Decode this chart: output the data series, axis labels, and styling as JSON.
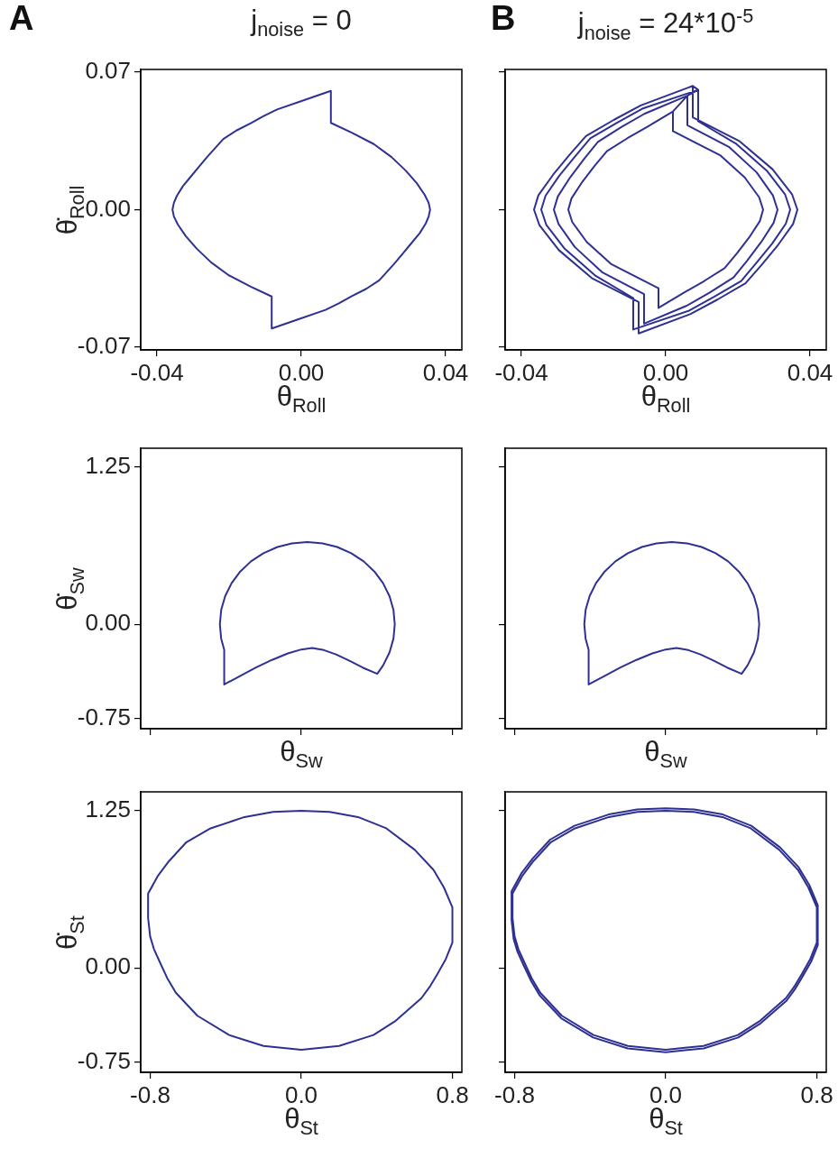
{
  "chart_data": [
    {
      "type": "line",
      "title": "j$_{noise}$ = 0",
      "annotations": [
        "A"
      ],
      "xlabel": "θ$_{Roll}$",
      "ylabel": "θ̇$_{Roll}$",
      "xlim": [
        -0.0445,
        0.0445
      ],
      "ylim": [
        -0.0714,
        0.0714
      ],
      "xticks": [
        -0.04,
        {
          "value": 0,
          "label": "0.00"
        },
        0.04
      ],
      "yticks": [
        -0.07,
        {
          "value": 0,
          "label": "0.00"
        },
        0.07
      ],
      "series": [
        {
          "color": "#2e3192",
          "x": [
            0.0082,
            0.0082,
            0.014,
            0.0201,
            0.025,
            0.029,
            0.032,
            0.0342,
            0.0353,
            0.0357,
            0.0353,
            0.0345,
            0.0328,
            0.0305,
            0.0283,
            0.026,
            0.0238,
            0.0216,
            0.018,
            0.014,
            0.0104,
            0.0067,
            -0.0008,
            -0.0082,
            -0.0082,
            -0.014,
            -0.0201,
            -0.025,
            -0.029,
            -0.032,
            -0.0342,
            -0.0353,
            -0.0357,
            -0.0353,
            -0.0345,
            -0.0328,
            -0.0305,
            -0.0283,
            -0.026,
            -0.0238,
            -0.0216,
            -0.018,
            -0.014,
            -0.0104,
            -0.0067,
            0.0008,
            0.0082,
            0.0082
          ],
          "values": [
            0.0605,
            0.0442,
            0.0392,
            0.0334,
            0.0268,
            0.0198,
            0.0135,
            0.0076,
            0.0035,
            0,
            -0.0035,
            -0.007,
            -0.012,
            -0.0171,
            -0.022,
            -0.027,
            -0.0315,
            -0.036,
            -0.0403,
            -0.044,
            -0.0477,
            -0.051,
            -0.0558,
            -0.0605,
            -0.0442,
            -0.0392,
            -0.0334,
            -0.0268,
            -0.0198,
            -0.0135,
            -0.0076,
            -0.0035,
            0,
            0.0035,
            0.007,
            0.012,
            0.0171,
            0.022,
            0.027,
            0.0315,
            0.036,
            0.0403,
            0.044,
            0.0477,
            0.051,
            0.0558,
            0.0605,
            0.052
          ]
        }
      ]
    },
    {
      "type": "line",
      "title": "j$_{noise}$ = 24*10$^{-5}$",
      "annotations": [
        "B"
      ],
      "xlabel": "θ$_{Roll}$",
      "xlim": [
        -0.0445,
        0.0445
      ],
      "ylim": [
        -0.0714,
        0.0714
      ],
      "xticks": [
        -0.04,
        {
          "value": 0,
          "label": "0.00"
        },
        0.04
      ],
      "yticks": [
        {
          "value": -0.07,
          "label": null
        },
        {
          "value": 0,
          "label": null
        },
        {
          "value": 0.07,
          "label": null
        }
      ],
      "tick_labels": "x",
      "series": [
        {
          "color": "#2e3192",
          "x": [
            0.002,
            0.002,
            0.0152,
            0.0219,
            0.0259,
            0.027,
            0.0261,
            0.0231,
            0.0197,
            0.0163,
            0.0106,
            0.0051,
            -0.002,
            -0.002,
            -0.0152,
            -0.0219,
            -0.0259,
            -0.027,
            -0.0261,
            -0.0231,
            -0.0197,
            -0.0163,
            -0.0106,
            -0.0051,
            0.002,
            0.006,
            0.006,
            0.0175,
            0.0252,
            0.0297,
            0.031,
            0.0299,
            0.0265,
            0.0226,
            0.0188,
            0.0122,
            0.0058,
            -0.006,
            -0.006,
            -0.0175,
            -0.0252,
            -0.0297,
            -0.031,
            -0.0299,
            -0.0265,
            -0.0226,
            -0.0188,
            -0.0122,
            -0.0058,
            0.006,
            0.009,
            0.009,
            0.0194,
            0.028,
            0.0331,
            0.0345,
            0.0333,
            0.0295,
            0.0251,
            0.0209,
            0.0135,
            0.0065,
            -0.009,
            -0.009,
            -0.0194,
            -0.028,
            -0.0331,
            -0.0345,
            -0.0333,
            -0.0295,
            -0.0251,
            -0.0209,
            -0.0135,
            -0.0065,
            0.009,
            0.0075,
            0.0075,
            0.0205,
            0.0296,
            0.035,
            0.0365,
            0.0353,
            0.0312,
            0.0266,
            0.0221,
            0.0143,
            0.0069,
            -0.0075,
            -0.0075,
            -0.0205,
            -0.0296,
            -0.035,
            -0.0365,
            -0.0353,
            -0.0312,
            -0.0266,
            -0.0221,
            -0.0143,
            -0.0069,
            0.0075
          ],
          "values": [
            0.05,
            0.04,
            0.0276,
            0.0164,
            0.0063,
            0,
            -0.0058,
            -0.0142,
            -0.0223,
            -0.0298,
            -0.0364,
            -0.0422,
            -0.05,
            -0.04,
            -0.0276,
            -0.0164,
            -0.0063,
            0,
            0.0058,
            0.0142,
            0.0223,
            0.0298,
            0.0364,
            0.0422,
            0.05,
            0.058,
            0.043,
            0.032,
            0.019,
            0.0073,
            0,
            -0.0067,
            -0.0164,
            -0.0259,
            -0.0345,
            -0.0422,
            -0.0489,
            -0.058,
            -0.043,
            -0.032,
            -0.019,
            -0.0073,
            0,
            0.0067,
            0.0164,
            0.0259,
            0.0345,
            0.0422,
            0.0489,
            0.058,
            0.061,
            0.045,
            0.0337,
            0.0199,
            0.0077,
            0,
            -0.0071,
            -0.0173,
            -0.0272,
            -0.0363,
            -0.0443,
            -0.0514,
            -0.061,
            -0.045,
            -0.0337,
            -0.0199,
            -0.0077,
            0,
            0.0071,
            0.0173,
            0.0272,
            0.0363,
            0.0443,
            0.0514,
            0.061,
            0.063,
            0.047,
            0.0348,
            0.0206,
            0.0079,
            0,
            -0.0073,
            -0.0178,
            -0.0281,
            -0.0375,
            -0.0458,
            -0.0531,
            -0.063,
            -0.047,
            -0.0348,
            -0.0206,
            -0.0079,
            0,
            0.0073,
            0.0178,
            0.0281,
            0.0375,
            0.0458,
            0.0531,
            0.063
          ]
        }
      ]
    },
    {
      "type": "line",
      "xlabel": "θ$_{Sw}$",
      "ylabel": "θ̇$_{Sw}$",
      "xlim": [
        -0.85,
        0.85
      ],
      "ylim": [
        -0.83,
        1.4
      ],
      "xticks": [
        {
          "value": -0.8,
          "label": null
        },
        {
          "value": 0,
          "label": null
        },
        {
          "value": 0.8,
          "label": null
        }
      ],
      "yticks": [
        -0.75,
        {
          "value": 0,
          "label": "0.00"
        },
        1.25
      ],
      "tick_labels": "y",
      "series": [
        {
          "color": "#2e3192",
          "x": [
            0.402,
            0.433,
            0.467,
            0.488,
            0.495,
            0.488,
            0.467,
            0.433,
            0.387,
            0.33,
            0.264,
            0.19,
            0.113,
            0.032,
            -0.049,
            -0.126,
            -0.2,
            -0.266,
            -0.323,
            -0.369,
            -0.403,
            -0.424,
            -0.431,
            -0.424,
            -0.408,
            -0.408,
            -0.32,
            -0.24,
            -0.155,
            -0.071,
            0,
            0.057,
            0.12,
            0.184,
            0.255,
            0.325,
            0.402,
            0.418
          ],
          "values": [
            -0.394,
            -0.327,
            -0.224,
            -0.114,
            0,
            0.114,
            0.224,
            0.327,
            0.42,
            0.501,
            0.566,
            0.615,
            0.644,
            0.654,
            0.644,
            0.615,
            0.566,
            0.501,
            0.42,
            0.327,
            0.224,
            0.114,
            0,
            -0.114,
            -0.202,
            -0.478,
            -0.408,
            -0.344,
            -0.283,
            -0.231,
            -0.2,
            -0.189,
            -0.205,
            -0.239,
            -0.29,
            -0.344,
            -0.394,
            -0.36
          ]
        }
      ]
    },
    {
      "type": "line",
      "xlabel": "θ$_{Sw}$",
      "xlim": [
        -0.85,
        0.85
      ],
      "ylim": [
        -0.83,
        1.4
      ],
      "xticks": [
        {
          "value": -0.8,
          "label": null
        },
        {
          "value": 0,
          "label": null
        },
        {
          "value": 0.8,
          "label": null
        }
      ],
      "yticks": [
        {
          "value": -0.75,
          "label": null
        },
        {
          "value": 0,
          "label": null
        },
        {
          "value": 1.25,
          "label": null
        }
      ],
      "tick_labels": false,
      "series": [
        {
          "color": "#2e3192",
          "x": [
            0.402,
            0.433,
            0.467,
            0.488,
            0.495,
            0.488,
            0.467,
            0.433,
            0.387,
            0.33,
            0.264,
            0.19,
            0.113,
            0.032,
            -0.049,
            -0.126,
            -0.2,
            -0.266,
            -0.323,
            -0.369,
            -0.403,
            -0.424,
            -0.431,
            -0.424,
            -0.408,
            -0.408,
            -0.32,
            -0.24,
            -0.155,
            -0.071,
            0,
            0.057,
            0.12,
            0.184,
            0.255,
            0.325,
            0.402,
            0.418
          ],
          "values": [
            -0.394,
            -0.327,
            -0.224,
            -0.114,
            0,
            0.114,
            0.224,
            0.327,
            0.42,
            0.501,
            0.566,
            0.615,
            0.644,
            0.654,
            0.644,
            0.615,
            0.566,
            0.501,
            0.42,
            0.327,
            0.224,
            0.114,
            0,
            -0.114,
            -0.202,
            -0.478,
            -0.408,
            -0.344,
            -0.283,
            -0.231,
            -0.2,
            -0.189,
            -0.205,
            -0.239,
            -0.29,
            -0.344,
            -0.394,
            -0.36
          ]
        }
      ]
    },
    {
      "type": "line",
      "xlabel": "θ$_{St}$",
      "ylabel": "θ̇$_{St}$",
      "xlim": [
        -0.85,
        0.85
      ],
      "ylim": [
        -0.83,
        1.4
      ],
      "xticks": [
        -0.8,
        {
          "value": 0,
          "label": "0.0"
        },
        0.8
      ],
      "yticks": [
        -0.75,
        {
          "value": 0,
          "label": "0.00"
        },
        1.25
      ],
      "series": [
        {
          "color": "#2e3192",
          "x": [
            -0.811,
            -0.76,
            -0.7,
            -0.608,
            -0.48,
            -0.3,
            -0.15,
            0,
            0.15,
            0.3,
            0.45,
            0.6,
            0.7,
            0.755,
            0.8,
            0.8,
            0.765,
            0.72,
            0.68,
            0.636,
            0.5,
            0.382,
            0.2,
            0,
            -0.2,
            -0.382,
            -0.55,
            -0.664,
            -0.71,
            -0.75,
            -0.78,
            -0.8,
            -0.811,
            -0.811,
            -0.785
          ],
          "values": [
            0.591,
            0.73,
            0.85,
            1,
            1.11,
            1.2,
            1.24,
            1.25,
            1.24,
            1.2,
            1.11,
            0.94,
            0.78,
            0.64,
            0.482,
            0.201,
            0.07,
            -0.05,
            -0.15,
            -0.24,
            -0.42,
            -0.533,
            -0.62,
            -0.65,
            -0.62,
            -0.533,
            -0.38,
            -0.197,
            -0.08,
            0.05,
            0.15,
            0.25,
            0.398,
            0.591,
            0.66
          ]
        }
      ]
    },
    {
      "type": "line",
      "xlabel": "θ$_{St}$",
      "xlim": [
        -0.85,
        0.85
      ],
      "ylim": [
        -0.83,
        1.4
      ],
      "xticks": [
        -0.8,
        {
          "value": 0,
          "label": "0.0"
        },
        0.8
      ],
      "yticks": [
        {
          "value": -0.75,
          "label": null
        },
        {
          "value": 0,
          "label": null
        },
        {
          "value": 1.25,
          "label": null
        }
      ],
      "tick_labels": "x",
      "series": [
        {
          "color": "#2e3192",
          "x": [
            -0.811,
            -0.76,
            -0.7,
            -0.608,
            -0.48,
            -0.3,
            -0.15,
            0,
            0.15,
            0.3,
            0.45,
            0.6,
            0.7,
            0.755,
            0.8,
            0.8,
            0.765,
            0.72,
            0.68,
            0.636,
            0.5,
            0.382,
            0.2,
            0,
            -0.2,
            -0.382,
            -0.55,
            -0.664,
            -0.71,
            -0.75,
            -0.78,
            -0.8,
            -0.811,
            -0.811,
            -0.816,
            -0.765,
            -0.704,
            -0.612,
            -0.483,
            -0.302,
            -0.151,
            0,
            0.151,
            0.302,
            0.453,
            0.604,
            0.704,
            0.76,
            0.805,
            0.805,
            0.77,
            0.724,
            0.684,
            0.64,
            0.503,
            0.384,
            0.201,
            0,
            -0.201,
            -0.384,
            -0.553,
            -0.668,
            -0.714,
            -0.755,
            -0.785,
            -0.805,
            -0.816,
            -0.816
          ],
          "values": [
            0.591,
            0.73,
            0.85,
            1,
            1.11,
            1.2,
            1.24,
            1.25,
            1.24,
            1.2,
            1.11,
            0.94,
            0.78,
            0.64,
            0.482,
            0.201,
            0.07,
            -0.05,
            -0.15,
            -0.24,
            -0.42,
            -0.533,
            -0.62,
            -0.65,
            -0.62,
            -0.533,
            -0.38,
            -0.197,
            -0.08,
            0.05,
            0.15,
            0.25,
            0.398,
            0.591,
            0.61,
            0.75,
            0.87,
            1.02,
            1.13,
            1.22,
            1.26,
            1.27,
            1.26,
            1.22,
            1.13,
            0.96,
            0.8,
            0.66,
            0.5,
            0.18,
            0.05,
            -0.07,
            -0.17,
            -0.26,
            -0.44,
            -0.553,
            -0.64,
            -0.67,
            -0.64,
            -0.553,
            -0.4,
            -0.217,
            -0.1,
            0.03,
            0.13,
            0.23,
            0.38,
            0.61
          ]
        }
      ]
    }
  ]
}
